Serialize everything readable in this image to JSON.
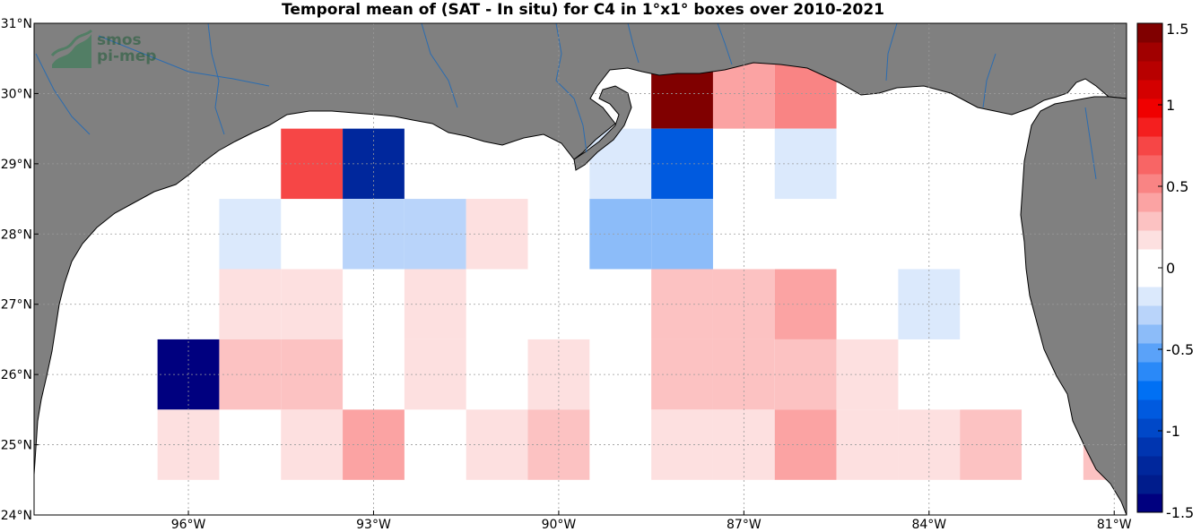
{
  "title": "Temporal mean of (SAT - In situ) for C4 in 1°x1° boxes over 2010-2021",
  "logo": {
    "line1": "smos",
    "line2": "pi-mep"
  },
  "map": {
    "lon_range": [
      -98.5,
      -80.8
    ],
    "lat_range": [
      24,
      31
    ],
    "land_color": "#808080",
    "ocean_color": "#ffffff",
    "river_color": "#2b6cb0",
    "x_ticks": [
      {
        "lon": -96,
        "label": "96°W"
      },
      {
        "lon": -93,
        "label": "93°W"
      },
      {
        "lon": -90,
        "label": "90°W"
      },
      {
        "lon": -87,
        "label": "87°W"
      },
      {
        "lon": -84,
        "label": "84°W"
      },
      {
        "lon": -81,
        "label": "81°W"
      }
    ],
    "y_ticks": [
      {
        "lat": 24,
        "label": "24°N"
      },
      {
        "lat": 25,
        "label": "25°N"
      },
      {
        "lat": 26,
        "label": "26°N"
      },
      {
        "lat": 27,
        "label": "27°N"
      },
      {
        "lat": 28,
        "label": "28°N"
      },
      {
        "lat": 29,
        "label": "29°N"
      },
      {
        "lat": 30,
        "label": "30°N"
      },
      {
        "lat": 31,
        "label": "31°N"
      }
    ]
  },
  "chart_data": {
    "type": "heatmap",
    "title": "Temporal mean of (SAT - In situ) for C4 in 1°x1° boxes over 2010-2021",
    "value_range": [
      -1.5,
      1.5
    ],
    "cells": [
      {
        "lon": -96,
        "lat": 26,
        "value": -1.5
      },
      {
        "lon": -96,
        "lat": 25,
        "value": 0.15
      },
      {
        "lon": -95,
        "lat": 28,
        "value": -0.15
      },
      {
        "lon": -95,
        "lat": 27,
        "value": 0.15
      },
      {
        "lon": -95,
        "lat": 26,
        "value": 0.3
      },
      {
        "lon": -94,
        "lat": 29,
        "value": 0.75
      },
      {
        "lon": -94,
        "lat": 27,
        "value": 0.15
      },
      {
        "lon": -94,
        "lat": 26,
        "value": 0.3
      },
      {
        "lon": -94,
        "lat": 25,
        "value": 0.15
      },
      {
        "lon": -93,
        "lat": 29,
        "value": -1.2
      },
      {
        "lon": -93,
        "lat": 28,
        "value": -0.25
      },
      {
        "lon": -93,
        "lat": 25,
        "value": 0.35
      },
      {
        "lon": -92,
        "lat": 28,
        "value": -0.25
      },
      {
        "lon": -92,
        "lat": 27,
        "value": 0.15
      },
      {
        "lon": -92,
        "lat": 26,
        "value": 0.15
      },
      {
        "lon": -91,
        "lat": 28,
        "value": 0.15
      },
      {
        "lon": -91,
        "lat": 25,
        "value": 0.15
      },
      {
        "lon": -90,
        "lat": 26,
        "value": 0.15
      },
      {
        "lon": -90,
        "lat": 25,
        "value": 0.3
      },
      {
        "lon": -89,
        "lat": 29,
        "value": -0.15
      },
      {
        "lon": -89,
        "lat": 28,
        "value": -0.35
      },
      {
        "lon": -88,
        "lat": 30,
        "value": 1.5
      },
      {
        "lon": -88,
        "lat": 29,
        "value": -0.85
      },
      {
        "lon": -88,
        "lat": 28,
        "value": -0.45
      },
      {
        "lon": -88,
        "lat": 27,
        "value": 0.3
      },
      {
        "lon": -88,
        "lat": 26,
        "value": 0.3
      },
      {
        "lon": -88,
        "lat": 25,
        "value": 0.15
      },
      {
        "lon": -87,
        "lat": 30,
        "value": 0.45
      },
      {
        "lon": -87,
        "lat": 27,
        "value": 0.3
      },
      {
        "lon": -87,
        "lat": 26,
        "value": 0.3
      },
      {
        "lon": -87,
        "lat": 25,
        "value": 0.15
      },
      {
        "lon": -86,
        "lat": 30,
        "value": 0.55
      },
      {
        "lon": -86,
        "lat": 29,
        "value": -0.15
      },
      {
        "lon": -86,
        "lat": 27,
        "value": 0.45
      },
      {
        "lon": -86,
        "lat": 26,
        "value": 0.3
      },
      {
        "lon": -86,
        "lat": 25,
        "value": 0.45
      },
      {
        "lon": -85,
        "lat": 26,
        "value": 0.15
      },
      {
        "lon": -85,
        "lat": 25,
        "value": 0.15
      },
      {
        "lon": -84,
        "lat": 27,
        "value": -0.15
      },
      {
        "lon": -84,
        "lat": 25,
        "value": 0.15
      },
      {
        "lon": -83,
        "lat": 25,
        "value": 0.3
      },
      {
        "lon": -81,
        "lat": 25,
        "value": 0.3
      }
    ]
  },
  "colorbar": {
    "min": -1.5,
    "max": 1.5,
    "colors": [
      "#00007f",
      "#001c8c",
      "#00279c",
      "#0035b0",
      "#0048c8",
      "#005adf",
      "#0070f4",
      "#2a89f8",
      "#5aa2f9",
      "#8cbcf9",
      "#b9d4fa",
      "#dbe9fc",
      "#ffffff",
      "#ffffff",
      "#fde0e0",
      "#fcc2c2",
      "#fba3a3",
      "#f98484",
      "#f86565",
      "#f64646",
      "#f41f1f",
      "#f00000",
      "#d40000",
      "#b80000",
      "#a10000",
      "#800000"
    ],
    "ticks": [
      {
        "value": 1.5,
        "label": "1.5"
      },
      {
        "value": 1,
        "label": "1"
      },
      {
        "value": 0.5,
        "label": "0.5"
      },
      {
        "value": 0,
        "label": "0"
      },
      {
        "value": -0.5,
        "label": "-0.5"
      },
      {
        "value": -1,
        "label": "-1"
      },
      {
        "value": -1.5,
        "label": "-1.5"
      }
    ]
  }
}
